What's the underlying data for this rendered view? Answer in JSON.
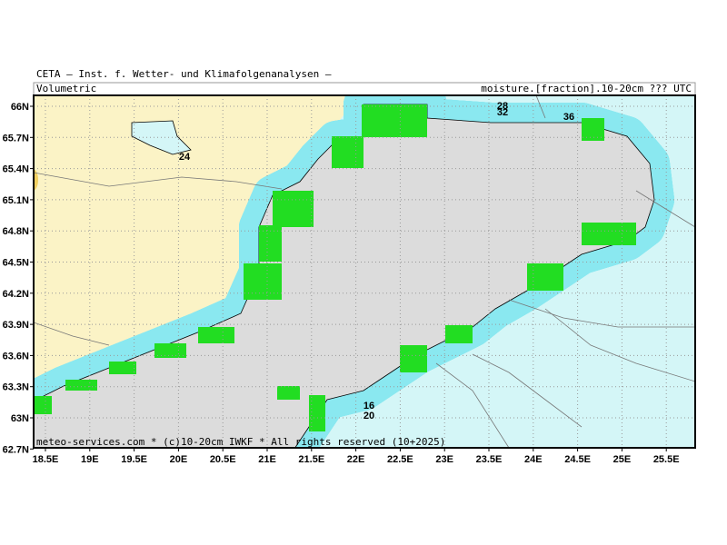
{
  "header": {
    "title": "CETA — Inst. f. Wetter- und Klimafolgenanalysen —",
    "left_label": "Volumetric",
    "right_label": "moisture.[fraction].10-20cm ??? UTC"
  },
  "map": {
    "lat_labels": [
      "66N",
      "65.7N",
      "65.4N",
      "65.1N",
      "64.8N",
      "64.5N",
      "64.2N",
      "63.9N",
      "63.6N",
      "63.3N",
      "63N",
      "62.7N"
    ],
    "lon_labels": [
      "18.5E",
      "19E",
      "19.5E",
      "20E",
      "20.5E",
      "21E",
      "21.5E",
      "22E",
      "22.5E",
      "23E",
      "23.5E",
      "24E",
      "24.5E",
      "25E",
      "25.5E"
    ],
    "contour_labels": [
      "24",
      "28",
      "32",
      "36",
      "16",
      "20"
    ]
  },
  "footer": "meteo-services.com * (c)10-20cm IWKF * All rights reserved (10+2025)"
}
